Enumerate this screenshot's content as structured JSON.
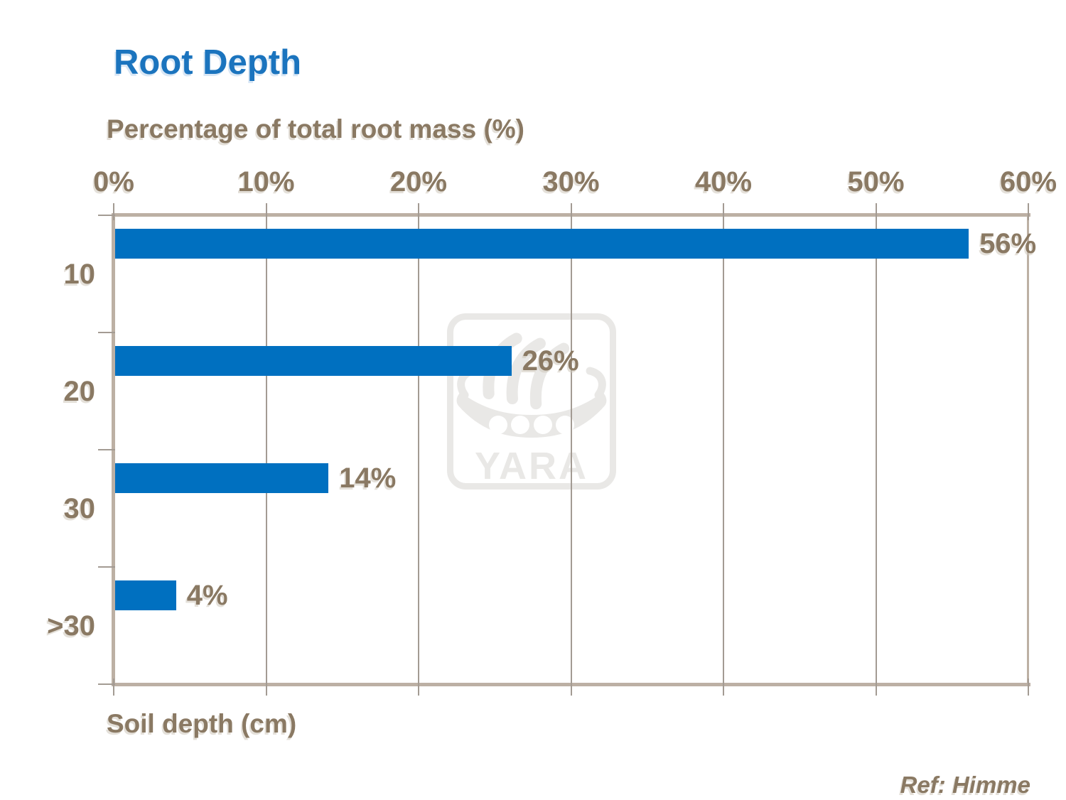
{
  "title": "Root Depth",
  "x_axis_title": "Percentage of total root mass (%)",
  "y_axis_title": "Soil depth (cm)",
  "reference": "Ref: Himme",
  "watermark_text": "YARA",
  "colors": {
    "title": "#1B74BE",
    "bar": "#0070C0",
    "text": "#8A7963",
    "axis": "#BCB0A4",
    "grid": "#A39B93",
    "watermark": "#E9E8E6"
  },
  "chart_data": {
    "type": "bar",
    "orientation": "horizontal",
    "title": "Root Depth",
    "xlabel": "Percentage of total root mass (%)",
    "ylabel": "Soil depth (cm)",
    "categories": [
      "10",
      "20",
      "30",
      ">30"
    ],
    "values": [
      56,
      26,
      14,
      4
    ],
    "data_labels": [
      "56%",
      "26%",
      "14%",
      "4%"
    ],
    "x_tick_labels": [
      "0%",
      "10%",
      "20%",
      "30%",
      "40%",
      "50%",
      "60%"
    ],
    "xlim": [
      0,
      60
    ],
    "grid": true,
    "legend": false,
    "bar_color": "#0070C0"
  }
}
